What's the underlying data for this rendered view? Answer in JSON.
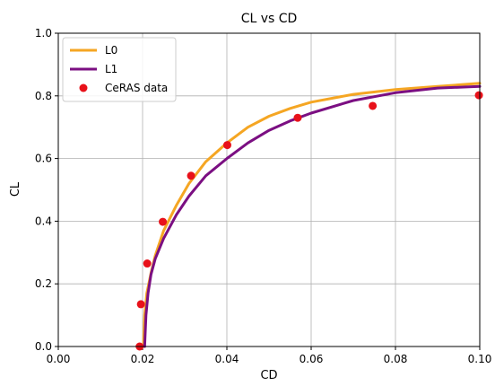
{
  "chart_data": {
    "type": "line",
    "title": "CL vs CD",
    "xlabel": "CD",
    "ylabel": "CL",
    "xlim": [
      0.0,
      0.1
    ],
    "ylim": [
      0.0,
      1.0
    ],
    "xticks": [
      "0.00",
      "0.02",
      "0.04",
      "0.06",
      "0.08",
      "0.10"
    ],
    "yticks": [
      "0.0",
      "0.2",
      "0.4",
      "0.6",
      "0.8",
      "1.0"
    ],
    "grid": true,
    "legend_position": "top-left",
    "series": [
      {
        "name": "L0",
        "kind": "line",
        "color": "#f5a623",
        "x": [
          0.0202,
          0.0205,
          0.021,
          0.022,
          0.023,
          0.025,
          0.028,
          0.031,
          0.035,
          0.04,
          0.045,
          0.05,
          0.055,
          0.06,
          0.07,
          0.08,
          0.09,
          0.1
        ],
        "y": [
          0.0,
          0.1,
          0.17,
          0.235,
          0.29,
          0.37,
          0.45,
          0.52,
          0.59,
          0.65,
          0.7,
          0.735,
          0.76,
          0.78,
          0.805,
          0.82,
          0.83,
          0.84
        ]
      },
      {
        "name": "L1",
        "kind": "line",
        "color": "#7b0f82",
        "x": [
          0.0205,
          0.0208,
          0.0213,
          0.022,
          0.023,
          0.025,
          0.028,
          0.031,
          0.035,
          0.04,
          0.045,
          0.05,
          0.055,
          0.06,
          0.07,
          0.08,
          0.09,
          0.1
        ],
        "y": [
          0.0,
          0.1,
          0.17,
          0.23,
          0.28,
          0.345,
          0.42,
          0.48,
          0.545,
          0.6,
          0.65,
          0.69,
          0.72,
          0.745,
          0.785,
          0.81,
          0.825,
          0.83
        ]
      },
      {
        "name": "CeRAS data",
        "kind": "scatter",
        "color": "#e8111a",
        "x": [
          0.0193,
          0.0196,
          0.0211,
          0.0248,
          0.0315,
          0.0401,
          0.0568,
          0.0746,
          0.0998
        ],
        "y": [
          0.0,
          0.135,
          0.265,
          0.398,
          0.545,
          0.643,
          0.73,
          0.768,
          0.802
        ]
      }
    ]
  }
}
